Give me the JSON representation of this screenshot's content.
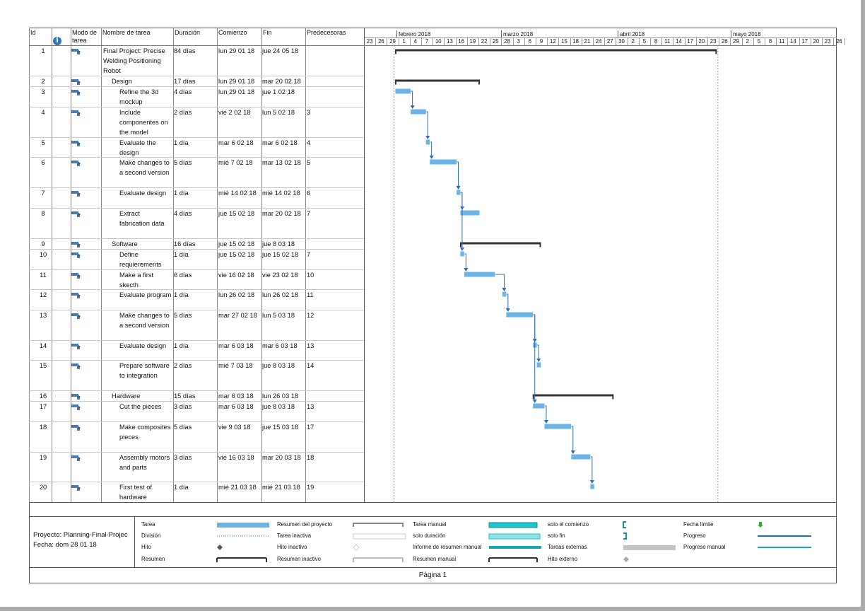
{
  "headers": {
    "id": "Id",
    "mode": "Modo de tarea",
    "name": "Nombre de tarea",
    "duration": "Duración",
    "start": "Comienzo",
    "finish": "Fin",
    "predecessors": "Predecesoras",
    "info_icon": "info-icon"
  },
  "timescale": {
    "months": [
      "febrero 2018",
      "marzo 2018",
      "abril 2018",
      "mayo 2018"
    ],
    "days": [
      "23",
      "26",
      "29",
      "1",
      "4",
      "7",
      "10",
      "13",
      "16",
      "19",
      "22",
      "25",
      "28",
      "3",
      "6",
      "9",
      "12",
      "15",
      "18",
      "21",
      "24",
      "27",
      "30",
      "2",
      "5",
      "8",
      "11",
      "14",
      "17",
      "20",
      "23",
      "26",
      "29",
      "2",
      "5",
      "8",
      "11",
      "14",
      "17",
      "20",
      "23",
      "26"
    ]
  },
  "tasks": [
    {
      "id": "1",
      "name": "Final Project: Precise Welding Positioning Robot",
      "duration": "84 días",
      "start": "lun 29 01 18",
      "finish": "jue 24 05 18",
      "pred": "",
      "level": 0,
      "type": "summary",
      "s": 6,
      "f": 90
    },
    {
      "id": "2",
      "name": "Design",
      "duration": "17 días",
      "start": "lun 29 01 18",
      "finish": "mar 20 02 18",
      "pred": "",
      "level": 1,
      "type": "summary",
      "s": 6,
      "f": 28
    },
    {
      "id": "3",
      "name": "Refine the 3d mockup",
      "duration": "4 días",
      "start": "lun 29 01 18",
      "finish": "jue 1 02 18",
      "pred": "",
      "level": 2,
      "type": "task",
      "s": 6,
      "f": 10
    },
    {
      "id": "4",
      "name": "Include componentes on the model",
      "duration": "2 días",
      "start": "vie 2 02 18",
      "finish": "lun 5 02 18",
      "pred": "3",
      "level": 2,
      "type": "task",
      "s": 10,
      "f": 14
    },
    {
      "id": "5",
      "name": "Evaluate the design",
      "duration": "1 día",
      "start": "mar 6 02 18",
      "finish": "mar 6 02 18",
      "pred": "4",
      "level": 2,
      "type": "task",
      "s": 14,
      "f": 15
    },
    {
      "id": "6",
      "name": "Make changes to a second version",
      "duration": "5 días",
      "start": "mié 7 02 18",
      "finish": "mar 13 02 18",
      "pred": "5",
      "level": 2,
      "type": "task",
      "s": 15,
      "f": 22
    },
    {
      "id": "7",
      "name": "Evaluate design",
      "duration": "1 día",
      "start": "mié 14 02 18",
      "finish": "mié 14 02 18",
      "pred": "6",
      "level": 2,
      "type": "task",
      "s": 22,
      "f": 23
    },
    {
      "id": "8",
      "name": "Extract fabrication data",
      "duration": "4 días",
      "start": "jue 15 02 18",
      "finish": "mar 20 02 18",
      "pred": "7",
      "level": 2,
      "type": "task",
      "s": 23,
      "f": 28
    },
    {
      "id": "9",
      "name": "Software",
      "duration": "16 días",
      "start": "jue 15 02 18",
      "finish": "jue 8 03 18",
      "pred": "",
      "level": 1,
      "type": "summary",
      "s": 23,
      "f": 44
    },
    {
      "id": "10",
      "name": "Define requierements",
      "duration": "1 día",
      "start": "jue 15 02 18",
      "finish": "jue 15 02 18",
      "pred": "7",
      "level": 2,
      "type": "task",
      "s": 23,
      "f": 24
    },
    {
      "id": "11",
      "name": "Make a first skecth",
      "duration": "6 días",
      "start": "vie 16 02 18",
      "finish": "vie 23 02 18",
      "pred": "10",
      "level": 2,
      "type": "task",
      "s": 24,
      "f": 32
    },
    {
      "id": "12",
      "name": "Evaluate program",
      "duration": "1 día",
      "start": "lun 26 02 18",
      "finish": "lun 26 02 18",
      "pred": "11",
      "level": 2,
      "type": "task",
      "s": 34,
      "f": 35
    },
    {
      "id": "13",
      "name": "Make changes to a second version",
      "duration": "5 días",
      "start": "mar 27 02 18",
      "finish": "lun 5 03 18",
      "pred": "12",
      "level": 2,
      "type": "task",
      "s": 35,
      "f": 42
    },
    {
      "id": "14",
      "name": "Evaluate design",
      "duration": "1 día",
      "start": "mar 6 03 18",
      "finish": "mar 6 03 18",
      "pred": "13",
      "level": 2,
      "type": "task",
      "s": 42,
      "f": 43
    },
    {
      "id": "15",
      "name": "Prepare software to integration",
      "duration": "2 días",
      "start": "mié 7 03 18",
      "finish": "jue 8 03 18",
      "pred": "14",
      "level": 2,
      "type": "task",
      "s": 43,
      "f": 44
    },
    {
      "id": "16",
      "name": "Hardware",
      "duration": "15 días",
      "start": "mar 6 03 18",
      "finish": "lun 26 03 18",
      "pred": "",
      "level": 1,
      "type": "summary",
      "s": 42,
      "f": 63
    },
    {
      "id": "17",
      "name": "Cut the pieces",
      "duration": "3 días",
      "start": "mar 6 03 18",
      "finish": "jue 8 03 18",
      "pred": "13",
      "level": 2,
      "type": "task",
      "s": 42,
      "f": 45
    },
    {
      "id": "18",
      "name": "Make composites pieces",
      "duration": "5 días",
      "start": "vie 9 03 18",
      "finish": "jue 15 03 18",
      "pred": "17",
      "level": 2,
      "type": "task",
      "s": 45,
      "f": 52
    },
    {
      "id": "19",
      "name": "Assembly motors and parts",
      "duration": "3 días",
      "start": "vie 16 03 18",
      "finish": "mar 20 03 18",
      "pred": "18",
      "level": 2,
      "type": "task",
      "s": 52,
      "f": 57
    },
    {
      "id": "20",
      "name": "First test of hardware",
      "duration": "1 día",
      "start": "mié 21 03 18",
      "finish": "mié 21 03 18",
      "pred": "19",
      "level": 2,
      "type": "task",
      "s": 57,
      "f": 58
    }
  ],
  "project": {
    "name": "Proyecto: Planning-Final-Projec",
    "date": "Fecha: dom 28 01 18"
  },
  "legend": [
    {
      "label": "Tarea",
      "symbol": "task"
    },
    {
      "label": "División",
      "symbol": "split"
    },
    {
      "label": "Hito",
      "symbol": "milestone"
    },
    {
      "label": "Resumen",
      "symbol": "summary"
    },
    {
      "label": "Resumen del proyecto",
      "symbol": "project-summary"
    },
    {
      "label": "Tarea inactiva",
      "symbol": "inactive-task"
    },
    {
      "label": "Hito inactivo",
      "symbol": "inactive-milestone"
    },
    {
      "label": "Resumen inactivo",
      "symbol": "inactive-summary"
    },
    {
      "label": "Tarea manual",
      "symbol": "manual-task"
    },
    {
      "label": "solo duración",
      "symbol": "duration-only"
    },
    {
      "label": "Informe de resumen manual",
      "symbol": "manual-summary-rollup"
    },
    {
      "label": "Resumen manual",
      "symbol": "manual-summary"
    },
    {
      "label": "solo el comienzo",
      "symbol": "start-only"
    },
    {
      "label": "solo fin",
      "symbol": "finish-only"
    },
    {
      "label": "Tareas externas",
      "symbol": "external-tasks"
    },
    {
      "label": "Hito externo",
      "symbol": "external-milestone"
    },
    {
      "label": "Fecha límite",
      "symbol": "deadline"
    },
    {
      "label": "Progreso",
      "symbol": "progress"
    },
    {
      "label": "Progreso manual",
      "symbol": "manual-progress"
    }
  ],
  "colors": {
    "task": "#6cb4e8",
    "summary": "#333333",
    "link": "#2a6fb5",
    "manual": "#1bc5c9",
    "external": "#c4c4c4",
    "deadline": "#2fae2f",
    "progress": "#1b74b6"
  },
  "footer": {
    "page": "Página 1"
  }
}
